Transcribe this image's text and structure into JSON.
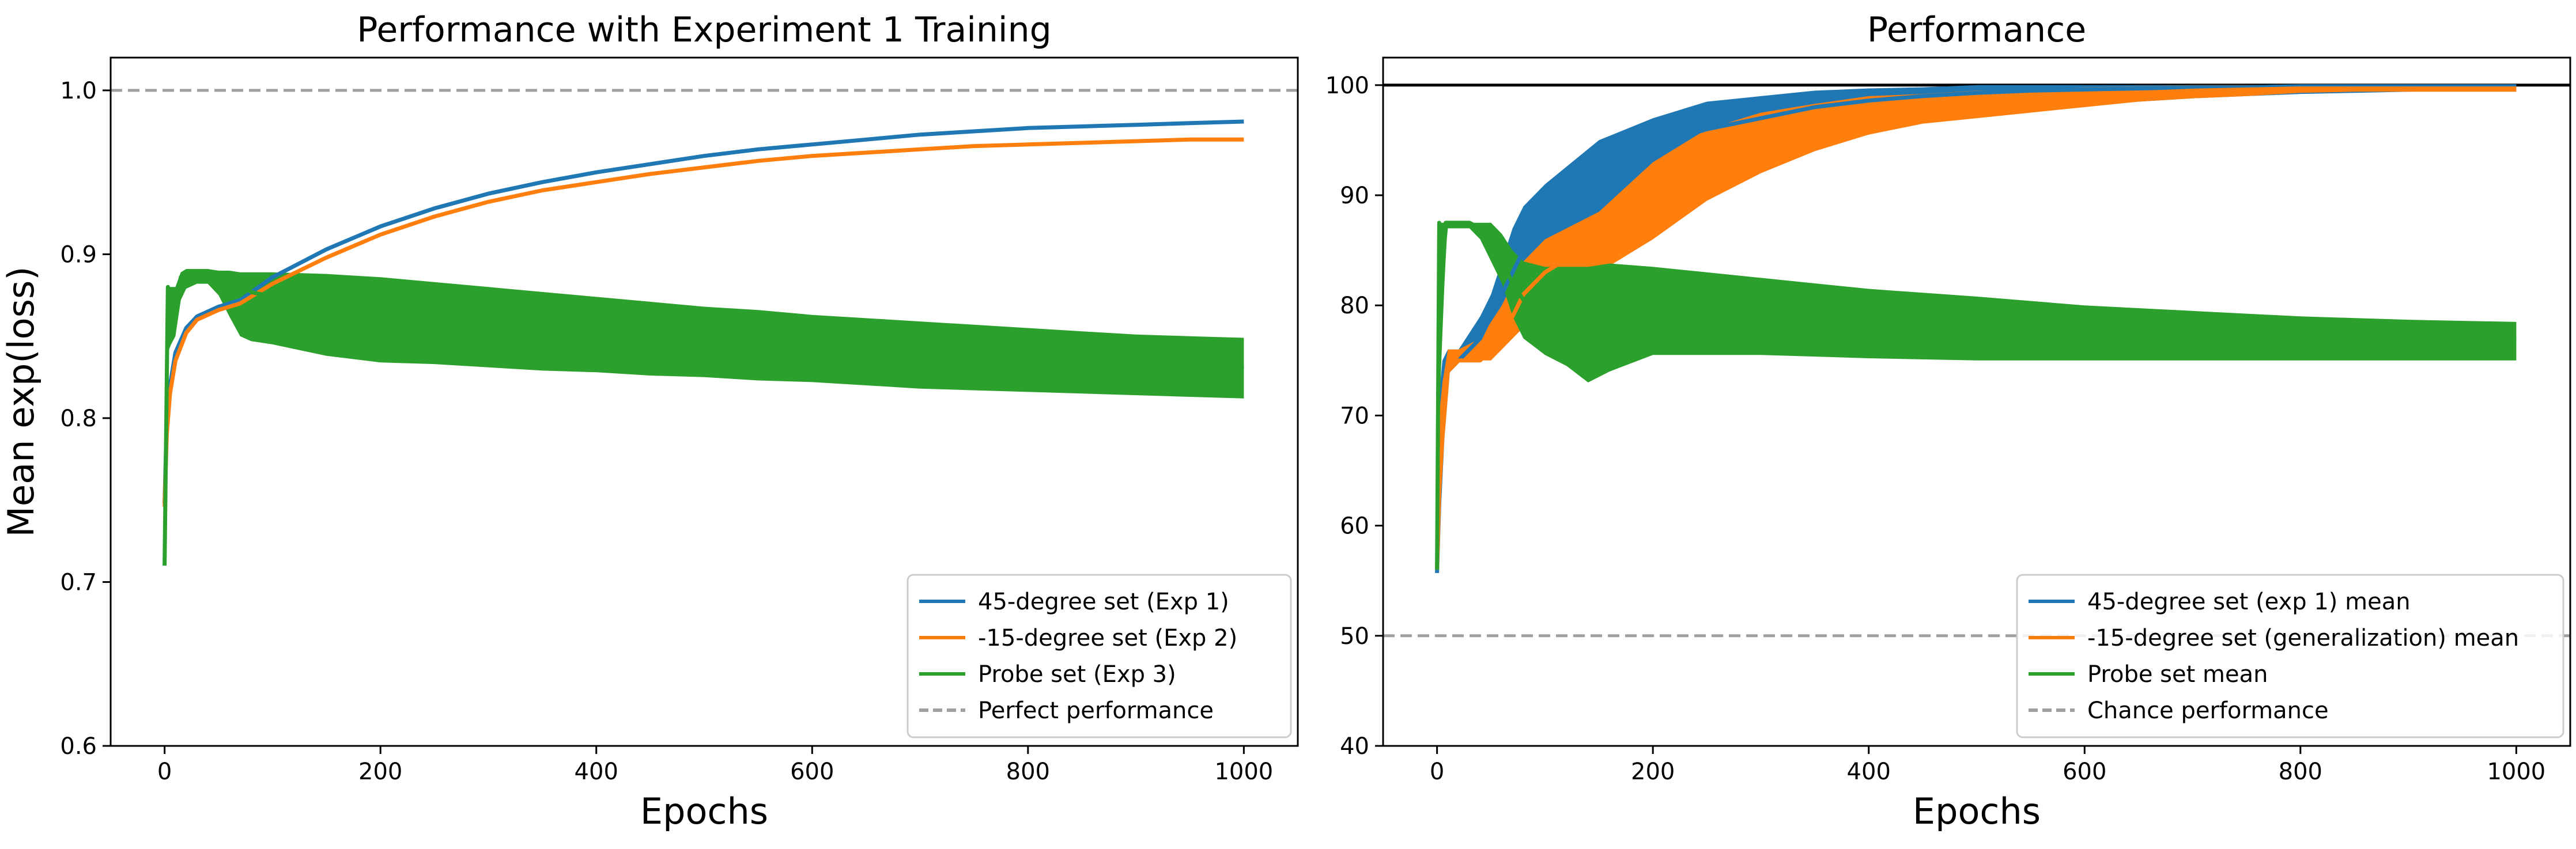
{
  "chart_data": [
    {
      "type": "line",
      "title": "Performance with Experiment 1 Training",
      "xlabel": "Epochs",
      "ylabel": "Mean exp(loss)",
      "xlim": [
        -50,
        1050
      ],
      "ylim": [
        0.6,
        1.02
      ],
      "xticks": [
        0,
        200,
        400,
        600,
        800,
        1000
      ],
      "yticks": [
        0.6,
        0.7,
        0.8,
        0.9,
        1.0
      ],
      "xtick_labels": [
        "0",
        "200",
        "400",
        "600",
        "800",
        "1000"
      ],
      "ytick_labels": [
        "0.6",
        "0.7",
        "0.8",
        "0.9",
        "1.0"
      ],
      "grid": false,
      "legend_position": "lower-right",
      "reference_lines": [
        {
          "name": "Perfect performance",
          "y": 1.0,
          "color": "#a0a0a0",
          "style": "dashed"
        }
      ],
      "series": [
        {
          "name": "45-degree set (Exp 1)",
          "color": "#1f77b4",
          "x": [
            0,
            2,
            5,
            10,
            20,
            30,
            50,
            70,
            100,
            150,
            200,
            250,
            300,
            350,
            400,
            450,
            500,
            550,
            600,
            650,
            700,
            750,
            800,
            850,
            900,
            950,
            1000
          ],
          "y": [
            0.748,
            0.8,
            0.82,
            0.84,
            0.855,
            0.862,
            0.868,
            0.872,
            0.886,
            0.903,
            0.917,
            0.928,
            0.937,
            0.944,
            0.95,
            0.955,
            0.96,
            0.964,
            0.967,
            0.97,
            0.973,
            0.975,
            0.977,
            0.978,
            0.979,
            0.98,
            0.981
          ]
        },
        {
          "name": "-15-degree set (Exp 2)",
          "color": "#ff7f0e",
          "x": [
            0,
            2,
            5,
            10,
            20,
            30,
            50,
            70,
            100,
            150,
            200,
            250,
            300,
            350,
            400,
            450,
            500,
            550,
            600,
            650,
            700,
            750,
            800,
            850,
            900,
            950,
            1000
          ],
          "y": [
            0.746,
            0.79,
            0.815,
            0.835,
            0.852,
            0.86,
            0.866,
            0.87,
            0.882,
            0.898,
            0.912,
            0.923,
            0.932,
            0.939,
            0.944,
            0.949,
            0.953,
            0.957,
            0.96,
            0.962,
            0.964,
            0.966,
            0.967,
            0.968,
            0.969,
            0.97,
            0.97
          ]
        },
        {
          "name": "Probe set (Exp 3)",
          "color": "#2ca02c",
          "x": [
            0,
            3,
            6,
            10,
            15,
            20,
            30,
            40,
            50,
            60,
            70,
            80,
            100,
            150,
            200,
            250,
            300,
            350,
            400,
            450,
            500,
            550,
            600,
            650,
            700,
            750,
            800,
            850,
            900,
            950,
            1000
          ],
          "y": [
            0.71,
            0.88,
            0.872,
            0.865,
            0.886,
            0.888,
            0.889,
            0.889,
            0.887,
            0.884,
            0.882,
            0.877,
            0.874,
            0.868,
            0.865,
            0.862,
            0.86,
            0.857,
            0.855,
            0.853,
            0.851,
            0.849,
            0.847,
            0.845,
            0.843,
            0.841,
            0.839,
            0.837,
            0.835,
            0.833,
            0.83
          ],
          "band_low": [
            0.71,
            0.84,
            0.845,
            0.85,
            0.872,
            0.879,
            0.882,
            0.882,
            0.875,
            0.862,
            0.85,
            0.847,
            0.845,
            0.838,
            0.834,
            0.833,
            0.831,
            0.829,
            0.828,
            0.826,
            0.825,
            0.823,
            0.822,
            0.82,
            0.818,
            0.817,
            0.816,
            0.815,
            0.814,
            0.813,
            0.812
          ],
          "band_high": [
            0.71,
            0.88,
            0.88,
            0.88,
            0.889,
            0.891,
            0.891,
            0.891,
            0.89,
            0.89,
            0.889,
            0.889,
            0.889,
            0.888,
            0.886,
            0.883,
            0.88,
            0.877,
            0.874,
            0.871,
            0.868,
            0.866,
            0.863,
            0.861,
            0.859,
            0.857,
            0.855,
            0.853,
            0.851,
            0.85,
            0.849
          ]
        }
      ]
    },
    {
      "type": "line",
      "title": "Performance",
      "xlabel": "Epochs",
      "ylabel": "",
      "xlim": [
        -50,
        1050
      ],
      "ylim": [
        40,
        102.5
      ],
      "xticks": [
        0,
        200,
        400,
        600,
        800,
        1000
      ],
      "yticks": [
        40,
        50,
        60,
        70,
        80,
        90,
        100
      ],
      "xtick_labels": [
        "0",
        "200",
        "400",
        "600",
        "800",
        "1000"
      ],
      "ytick_labels": [
        "40",
        "50",
        "60",
        "70",
        "80",
        "90",
        "100"
      ],
      "grid": false,
      "legend_position": "lower-right",
      "reference_lines": [
        {
          "name": "",
          "y": 100,
          "color": "#000000",
          "style": "solid"
        },
        {
          "name": "Chance performance",
          "y": 50,
          "color": "#a0a0a0",
          "style": "dashed"
        }
      ],
      "series": [
        {
          "name": "45-degree set (exp 1) mean",
          "color": "#1f77b4",
          "x": [
            0,
            2,
            5,
            10,
            20,
            30,
            40,
            50,
            60,
            70,
            80,
            100,
            150,
            200,
            250,
            300,
            350,
            400,
            450,
            500,
            550,
            600,
            650,
            700,
            750,
            800,
            850,
            900,
            950,
            1000
          ],
          "y": [
            55.7,
            62,
            68,
            74,
            75,
            76,
            77,
            79,
            81,
            83,
            85,
            88,
            92,
            94.5,
            96,
            97,
            98,
            98.6,
            99,
            99.3,
            99.5,
            99.6,
            99.7,
            99.8,
            99.8,
            99.9,
            99.9,
            99.9,
            99.9,
            99.9
          ],
          "band_low": [
            55.7,
            60,
            65,
            74,
            75,
            75,
            75.5,
            77,
            78,
            79,
            80,
            82,
            86,
            89,
            91.5,
            93,
            95,
            96,
            96.8,
            97.3,
            97.8,
            98.2,
            98.5,
            98.8,
            99,
            99.2,
            99.3,
            99.4,
            99.5,
            99.6
          ],
          "band_high": [
            55.7,
            72,
            75,
            76,
            76,
            77.5,
            79,
            81,
            84,
            87,
            89,
            91,
            95,
            97,
            98.5,
            99,
            99.5,
            99.7,
            99.8,
            100,
            100,
            100,
            100,
            100,
            100,
            100,
            100,
            100,
            100,
            100
          ]
        },
        {
          "name": "-15-degree set (generalization) mean",
          "color": "#ff7f0e",
          "x": [
            0,
            2,
            5,
            10,
            20,
            30,
            40,
            50,
            60,
            70,
            80,
            100,
            150,
            200,
            250,
            300,
            350,
            400,
            450,
            500,
            550,
            600,
            650,
            700,
            750,
            800,
            850,
            900,
            950,
            1000
          ],
          "y": [
            56,
            63,
            68,
            74,
            75,
            75,
            75,
            76,
            77,
            79,
            81,
            83,
            86,
            90,
            93,
            95,
            96.5,
            97.5,
            98,
            98.5,
            98.8,
            99.1,
            99.3,
            99.5,
            99.6,
            99.7,
            99.7,
            99.7,
            99.7,
            99.7
          ],
          "band_low": [
            56,
            60,
            65,
            74,
            75,
            75,
            75,
            75,
            76,
            77,
            78,
            80,
            83,
            86,
            89.5,
            92,
            94,
            95.5,
            96.5,
            97,
            97.5,
            98,
            98.5,
            98.8,
            99,
            99.3,
            99.4,
            99.4,
            99.4,
            99.4
          ],
          "band_high": [
            56,
            70,
            73,
            76,
            76,
            76.5,
            77,
            78.5,
            80,
            82,
            84,
            86,
            88.5,
            93,
            96,
            97.5,
            98.3,
            99,
            99.2,
            99.5,
            99.6,
            99.8,
            99.9,
            100,
            100,
            100,
            100,
            100,
            100,
            100
          ]
        },
        {
          "name": "Probe set mean",
          "color": "#2ca02c",
          "x": [
            0,
            2,
            4,
            6,
            8,
            10,
            20,
            30,
            40,
            50,
            60,
            70,
            80,
            100,
            120,
            140,
            160,
            200,
            250,
            300,
            400,
            500,
            600,
            700,
            800,
            900,
            1000
          ],
          "y": [
            56,
            87.5,
            80,
            84,
            87.5,
            87.5,
            87.5,
            87.5,
            87,
            86,
            84,
            82,
            80.5,
            79.5,
            79,
            78.5,
            79,
            79.3,
            79.3,
            79,
            78.5,
            78,
            77.5,
            77.2,
            77,
            76.8,
            76.8
          ],
          "band_low": [
            56,
            70,
            75,
            80,
            85,
            87,
            87,
            87,
            86,
            84,
            82,
            79,
            77,
            75.5,
            74.5,
            73,
            74,
            75.5,
            75.5,
            75.5,
            75.2,
            75,
            75,
            75,
            75,
            75,
            75
          ],
          "band_high": [
            56,
            87.5,
            87.5,
            87.5,
            87.5,
            87.5,
            87.5,
            87.5,
            87.5,
            87.5,
            86.5,
            85,
            84,
            83.5,
            83.5,
            83.5,
            83.8,
            83.5,
            83,
            82.5,
            81.5,
            80.8,
            80,
            79.5,
            79,
            78.7,
            78.5
          ]
        }
      ]
    }
  ]
}
